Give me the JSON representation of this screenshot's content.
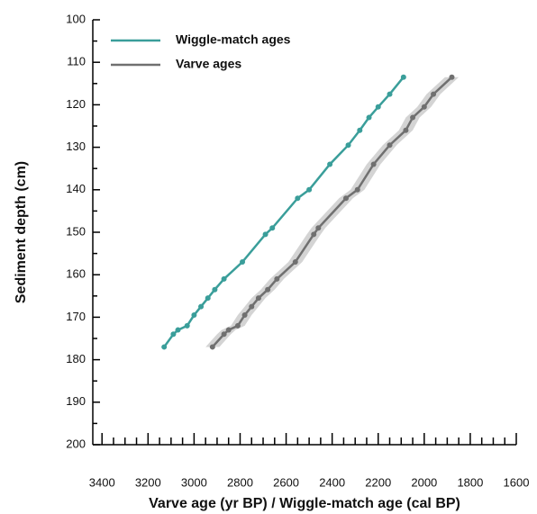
{
  "chart_data": {
    "type": "line",
    "xlabel": "Varve age (yr BP) / Wiggle-match age (cal BP)",
    "ylabel": "Sediment depth (cm)",
    "xlim": [
      3440,
      1600
    ],
    "xticks": [
      3400,
      3200,
      3000,
      2800,
      2600,
      2400,
      2200,
      2000,
      1800,
      1600
    ],
    "ylim": [
      100,
      200
    ],
    "yticks": [
      100,
      110,
      120,
      130,
      140,
      150,
      160,
      170,
      180,
      190,
      200
    ],
    "legend": "upper-left",
    "series": [
      {
        "name": "Wiggle-match ages",
        "color": "#3a9e9a",
        "x": [
          3130,
          3090,
          3070,
          3030,
          3000,
          2970,
          2940,
          2910,
          2870,
          2790,
          2690,
          2660,
          2550,
          2500,
          2410,
          2330,
          2280,
          2240,
          2200,
          2150,
          2090
        ],
        "values": [
          177,
          174,
          173,
          172,
          169.5,
          167.5,
          165.5,
          163.5,
          161,
          157,
          150.5,
          149,
          142,
          140,
          134,
          129.5,
          126,
          123,
          120.5,
          117.5,
          113.5
        ]
      },
      {
        "name": "Varve ages",
        "color": "#707070",
        "x": [
          2920,
          2870,
          2850,
          2810,
          2780,
          2750,
          2720,
          2680,
          2640,
          2560,
          2480,
          2460,
          2340,
          2290,
          2220,
          2150,
          2080,
          2050,
          2000,
          1960,
          1880
        ],
        "x_errors": [
          30,
          30,
          30,
          30,
          30,
          30,
          30,
          30,
          30,
          30,
          30,
          30,
          30,
          30,
          30,
          30,
          30,
          30,
          30,
          30,
          30
        ],
        "values": [
          177,
          174,
          173,
          172,
          169.5,
          167.5,
          165.5,
          163.5,
          161,
          157,
          150.5,
          149,
          142,
          140,
          134,
          129.5,
          126,
          123,
          120.5,
          117.5,
          113.5
        ]
      }
    ]
  }
}
